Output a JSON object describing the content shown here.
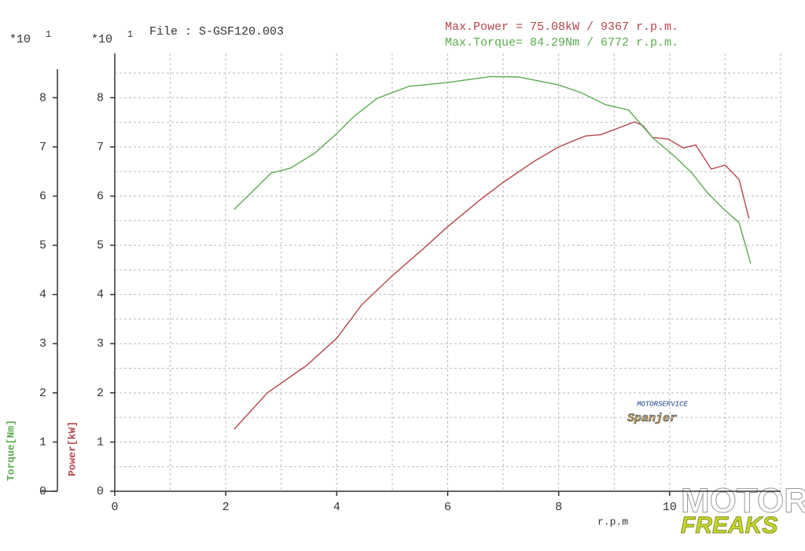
{
  "chart_data": {
    "type": "line",
    "file_label": "File : S-GSF120.003",
    "max_power_text": "Max.Power = 75.08kW /  9367 r.p.m.",
    "max_torque_text": "Max.Torque= 84.29Nm /  6772 r.p.m.",
    "y_scale_label": {
      "base": "*10",
      "exponent": "1"
    },
    "y2_scale_label": {
      "base": "*10",
      "exponent": "1"
    },
    "ylabel": "Power[kW]",
    "y2label": "Torque[Nm]",
    "xlabel": "r.p.m",
    "annotations": {
      "logo_top": "MOTORSERVICE",
      "logo_bottom": "Spanjer",
      "watermark_top": "MOTOR",
      "watermark_bottom": "FREAKS"
    },
    "xlim": [
      0,
      12
    ],
    "xticks": [
      0,
      2,
      4,
      6,
      8,
      10
    ],
    "minor_xticks": [
      1,
      3,
      5,
      7,
      9,
      11,
      12
    ],
    "ylim": [
      0,
      8.9
    ],
    "yticks": [
      0,
      1,
      2,
      3,
      4,
      5,
      6,
      7,
      8
    ],
    "minor_yticks": [
      0.5,
      1.5,
      2.5,
      3.5,
      4.5,
      5.5,
      6.5,
      7.5,
      8.5
    ],
    "y2lim": [
      0,
      8.9
    ],
    "y2ticks": [
      0,
      1,
      2,
      3,
      4,
      5,
      6,
      7,
      8
    ],
    "grid": true,
    "series": [
      {
        "name": "Power",
        "color": "#b5474b",
        "x": [
          2.15,
          2.75,
          3.46,
          4.0,
          4.45,
          5.01,
          5.58,
          6.0,
          6.57,
          7.0,
          7.56,
          8.0,
          8.48,
          8.76,
          9.37,
          9.52,
          9.69,
          9.97,
          10.25,
          10.47,
          10.75,
          11.0,
          11.25,
          11.43
        ],
        "values": [
          1.26,
          2.0,
          2.56,
          3.11,
          3.79,
          4.39,
          4.95,
          5.38,
          5.91,
          6.28,
          6.71,
          7.0,
          7.22,
          7.25,
          7.51,
          7.43,
          7.19,
          7.16,
          6.98,
          7.04,
          6.55,
          6.63,
          6.34,
          5.54
        ]
      },
      {
        "name": "Torque",
        "color": "#5aac4f",
        "axis": "y2",
        "x": [
          2.15,
          2.46,
          2.82,
          3.17,
          3.6,
          4.0,
          4.31,
          4.73,
          5.3,
          6.0,
          6.77,
          7.28,
          8.0,
          8.41,
          8.84,
          9.26,
          9.69,
          10.11,
          10.4,
          10.68,
          10.96,
          11.25,
          11.46
        ],
        "values": [
          5.73,
          6.07,
          6.47,
          6.57,
          6.87,
          7.27,
          7.62,
          7.99,
          8.23,
          8.31,
          8.43,
          8.42,
          8.26,
          8.1,
          7.86,
          7.75,
          7.19,
          6.79,
          6.47,
          6.07,
          5.75,
          5.46,
          4.63
        ]
      }
    ]
  }
}
